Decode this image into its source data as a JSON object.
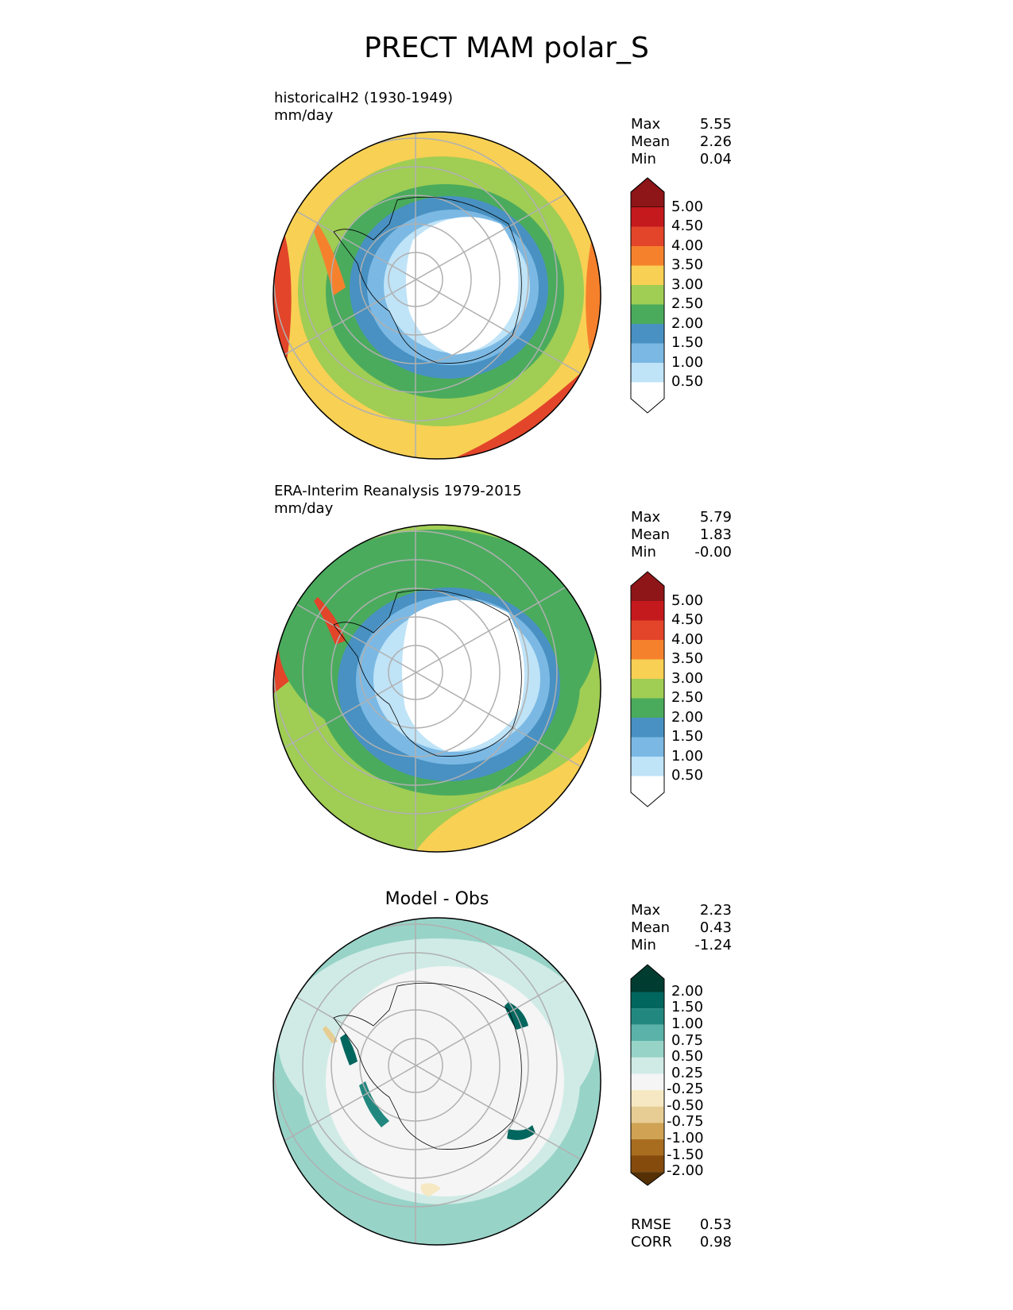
{
  "figure": {
    "title": "PRECT MAM polar_S"
  },
  "panels": [
    {
      "id": "model",
      "heading_line1": "historicalH2 (1930-1949)",
      "heading_line2": "mm/day",
      "stats": [
        {
          "label": "Max",
          "value": "5.55"
        },
        {
          "label": "Mean",
          "value": "2.26"
        },
        {
          "label": "Min",
          "value": "0.04"
        }
      ],
      "colorbar_ticks": [
        "5.00",
        "4.50",
        "4.00",
        "3.50",
        "3.00",
        "2.50",
        "2.00",
        "1.50",
        "1.00",
        "0.50"
      ],
      "colors": [
        "#8e1518",
        "#c4191d",
        "#e2452a",
        "#f6812d",
        "#f8d054",
        "#a0cd54",
        "#4aab5d",
        "#4891c2",
        "#7bb9e4",
        "#bfe3f7",
        "#ffffff"
      ]
    },
    {
      "id": "obs",
      "heading_line1": "ERA-Interim Reanalysis 1979-2015",
      "heading_line2": "mm/day",
      "stats": [
        {
          "label": "Max",
          "value": "5.79"
        },
        {
          "label": "Mean",
          "value": "1.83"
        },
        {
          "label": "Min",
          "value": "-0.00"
        }
      ],
      "colorbar_ticks": [
        "5.00",
        "4.50",
        "4.00",
        "3.50",
        "3.00",
        "2.50",
        "2.00",
        "1.50",
        "1.00",
        "0.50"
      ],
      "colors": [
        "#8e1518",
        "#c4191d",
        "#e2452a",
        "#f6812d",
        "#f8d054",
        "#a0cd54",
        "#4aab5d",
        "#4891c2",
        "#7bb9e4",
        "#bfe3f7",
        "#ffffff"
      ]
    },
    {
      "id": "diff",
      "center_title": "Model - Obs",
      "stats": [
        {
          "label": "Max",
          "value": "2.23"
        },
        {
          "label": "Mean",
          "value": "0.43"
        },
        {
          "label": "Min",
          "value": "-1.24"
        }
      ],
      "colorbar_ticks": [
        "2.00",
        "1.50",
        "1.00",
        "0.75",
        "0.50",
        "0.25",
        "-0.25",
        "-0.50",
        "-0.75",
        "-1.00",
        "-1.50",
        "-2.00"
      ],
      "colors": [
        "#013c30",
        "#01665e",
        "#22887f",
        "#5ab2a8",
        "#98d3c8",
        "#d0ebe6",
        "#f5f5f5",
        "#f6e8c3",
        "#e7cd93",
        "#cfa254",
        "#a86d1f",
        "#844b0c",
        "#553005"
      ],
      "metrics": [
        {
          "label": "RMSE",
          "value": "0.53"
        },
        {
          "label": "CORR",
          "value": "0.98"
        }
      ]
    }
  ]
}
